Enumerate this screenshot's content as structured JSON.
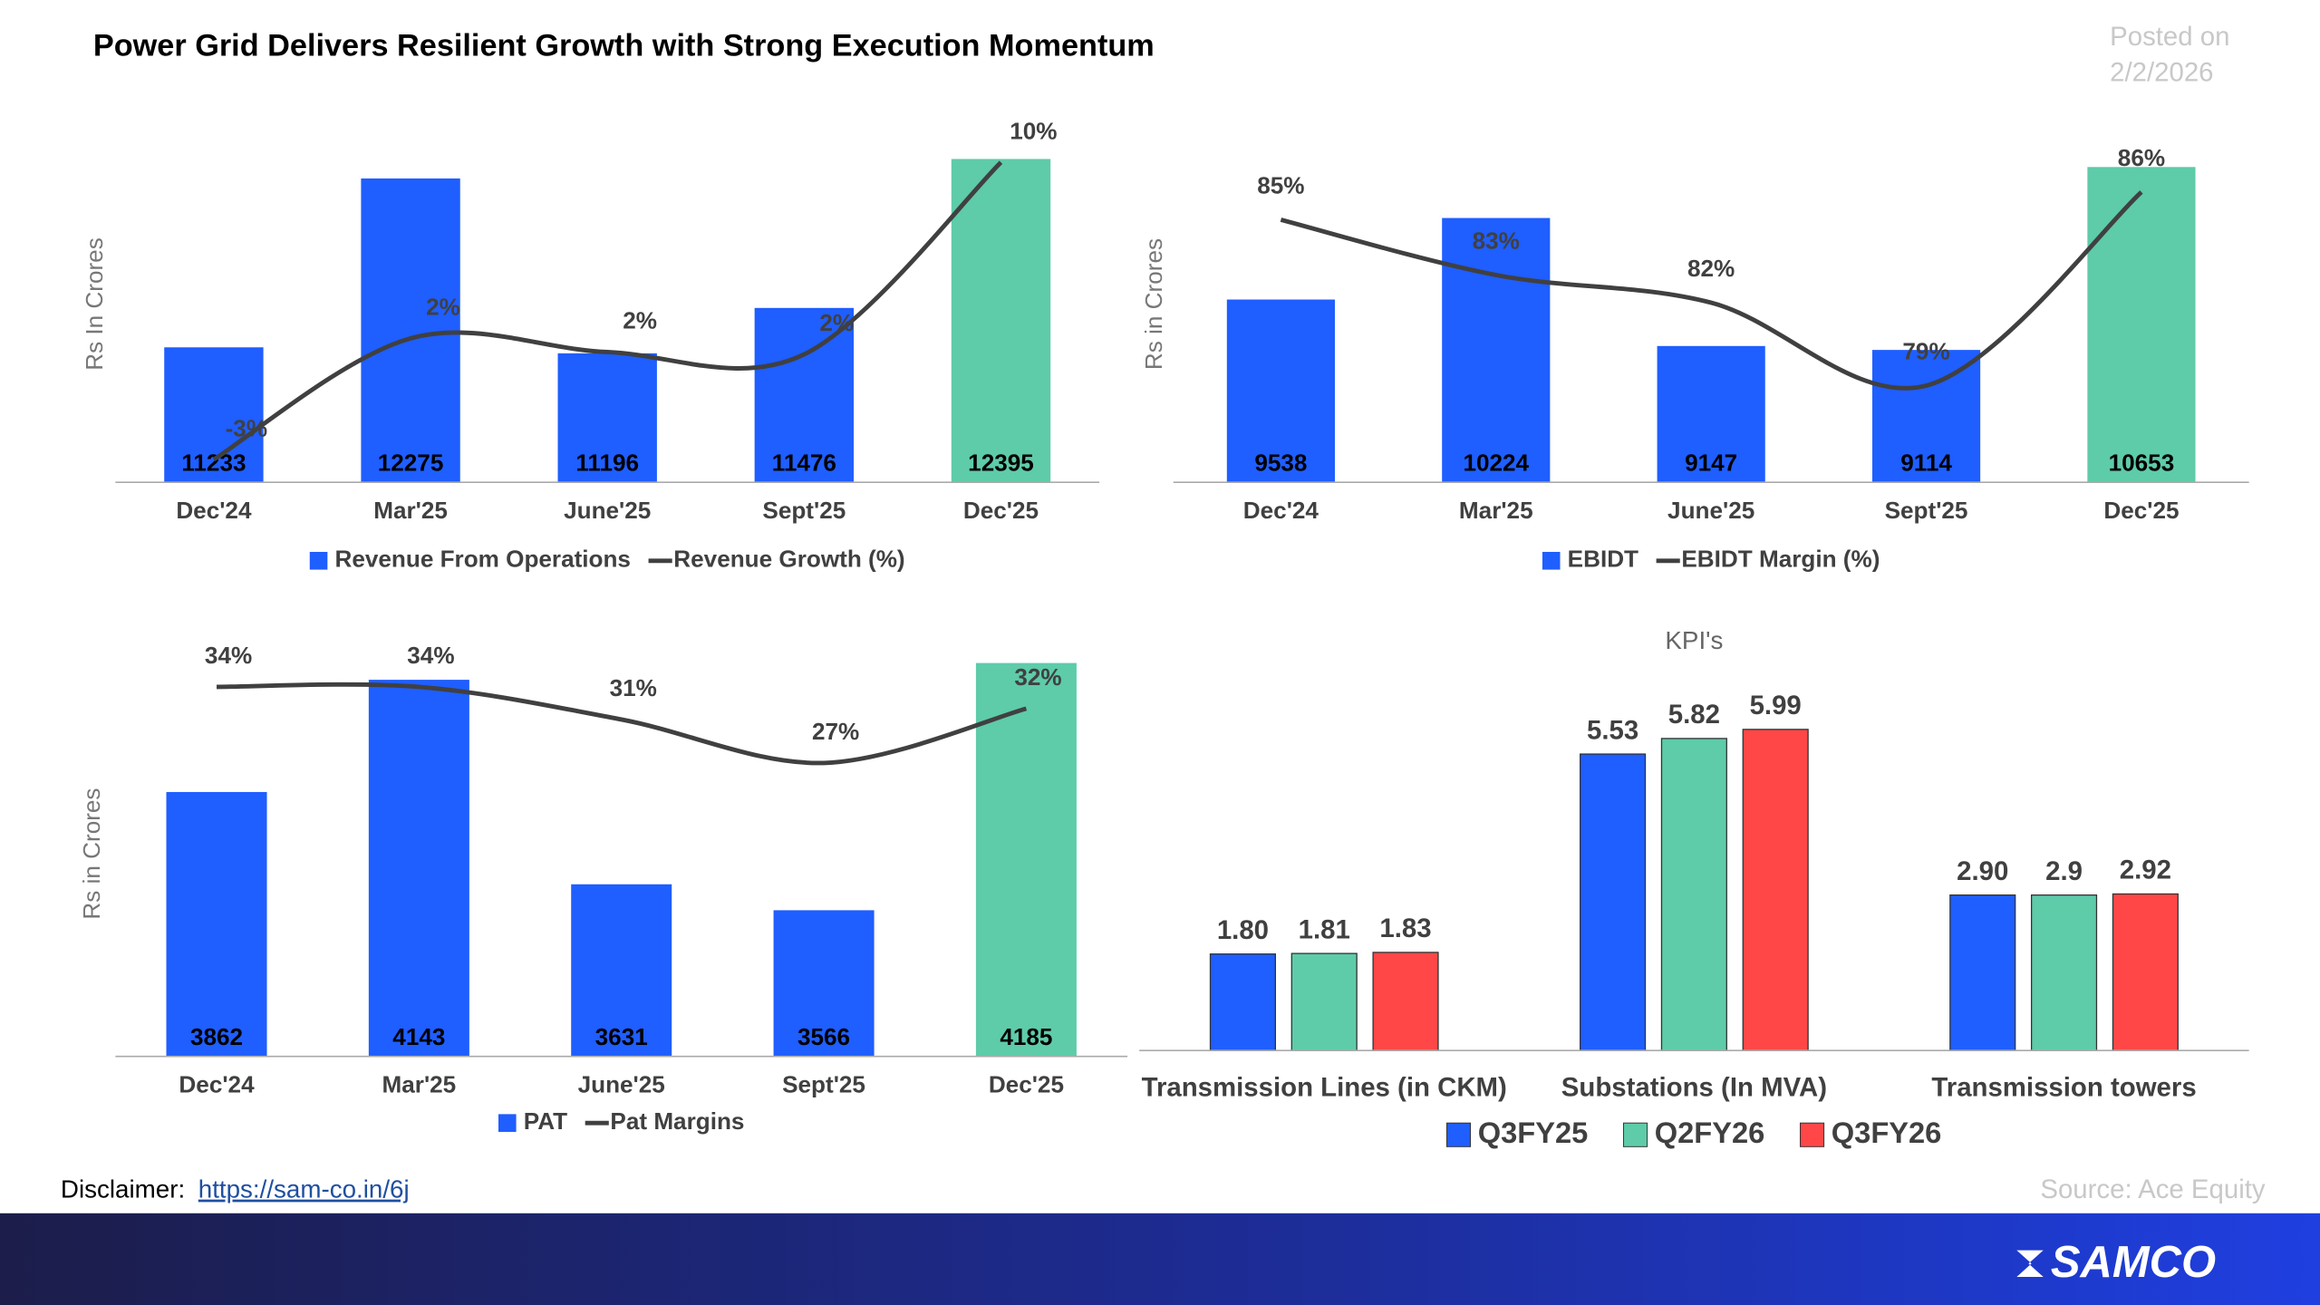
{
  "page": {
    "title": "Power Grid Delivers Resilient Growth with Strong Execution Momentum",
    "posted_label": "Posted on",
    "posted_date": "2/2/2026",
    "disclaimer_label": "Disclaimer:",
    "disclaimer_link": "https://sam-co.in/6j",
    "source": "Source: Ace Equity",
    "logo": "SAMCO"
  },
  "chart_data": [
    {
      "type": "bar_line",
      "y_label": "Rs In Crores",
      "categories": [
        "Dec'24",
        "Mar'25",
        "June'25",
        "Sept'25",
        "Dec'25"
      ],
      "series": [
        {
          "name": "Revenue From Operations",
          "type": "bar",
          "color": "#1f5eff",
          "colors": [
            "#1f5eff",
            "#1f5eff",
            "#1f5eff",
            "#1f5eff",
            "#5ecba9"
          ],
          "values": [
            11233,
            12275,
            11196,
            11476,
            12395
          ]
        },
        {
          "name": "Revenue Growth (%)",
          "type": "line",
          "axis": "y2",
          "color": "#404040",
          "values": [
            -3,
            2.3,
            1.7,
            1.6,
            10
          ],
          "value_labels": [
            "-3%",
            "2%",
            "2%",
            "2%",
            "10%"
          ]
        }
      ],
      "ylim": [
        10400,
        12600
      ],
      "y2lim": [
        -4,
        11.6
      ],
      "legend": "bottom"
    },
    {
      "type": "bar_line",
      "y_label": "Rs in Crores",
      "categories": [
        "Dec'24",
        "Mar'25",
        "June'25",
        "Sept'25",
        "Dec'25"
      ],
      "series": [
        {
          "name": "EBIDT",
          "type": "bar",
          "color": "#1f5eff",
          "colors": [
            "#1f5eff",
            "#1f5eff",
            "#1f5eff",
            "#1f5eff",
            "#5ecba9"
          ],
          "values": [
            9538,
            10224,
            9147,
            9114,
            10653
          ]
        },
        {
          "name": "EBIDT Margin (%)",
          "type": "line",
          "axis": "y2",
          "color": "#404040",
          "values": [
            85,
            83,
            82,
            79,
            86
          ],
          "value_labels": [
            "85%",
            "83%",
            "82%",
            "79%",
            "86%"
          ]
        }
      ],
      "ylim": [
        8000,
        11000
      ],
      "y2lim": [
        75.5,
        88.4
      ],
      "legend": "bottom"
    },
    {
      "type": "bar_line",
      "y_label": "Rs in Crores",
      "categories": [
        "Dec'24",
        "Mar'25",
        "June'25",
        "Sept'25",
        "Dec'25"
      ],
      "series": [
        {
          "name": "PAT",
          "type": "bar",
          "color": "#1f5eff",
          "colors": [
            "#1f5eff",
            "#1f5eff",
            "#1f5eff",
            "#1f5eff",
            "#5ecba9"
          ],
          "values": [
            3862,
            4143,
            3631,
            3566,
            4185
          ]
        },
        {
          "name": "Pat Margins",
          "type": "line",
          "axis": "y2",
          "color": "#404040",
          "values": [
            34,
            34,
            31,
            27,
            32
          ],
          "value_labels": [
            "34%",
            "34%",
            "31%",
            "27%",
            "32%"
          ]
        }
      ],
      "ylim": [
        3200,
        4215
      ],
      "y2lim": [
        0,
        37.3
      ],
      "legend": "bottom"
    },
    {
      "type": "bar",
      "title": "KPI's",
      "categories": [
        "Transmission Lines (in CKM)",
        "Substations (In MVA)",
        "Transmission towers"
      ],
      "series": [
        {
          "name": "Q3FY25",
          "color": "#1f5eff",
          "values": [
            1.8,
            5.53,
            2.9
          ],
          "value_labels": [
            "1.80",
            "5.53",
            "2.90"
          ]
        },
        {
          "name": "Q2FY26",
          "color": "#5ecba9",
          "values": [
            1.81,
            5.82,
            2.9
          ],
          "value_labels": [
            "1.81",
            "5.82",
            "2.9"
          ]
        },
        {
          "name": "Q3FY26",
          "color": "#ff4747",
          "values": [
            1.83,
            5.99,
            2.92
          ],
          "value_labels": [
            "1.83",
            "5.99",
            "2.92"
          ]
        }
      ],
      "ylim": [
        0,
        6.9
      ],
      "legend": "bottom"
    }
  ]
}
